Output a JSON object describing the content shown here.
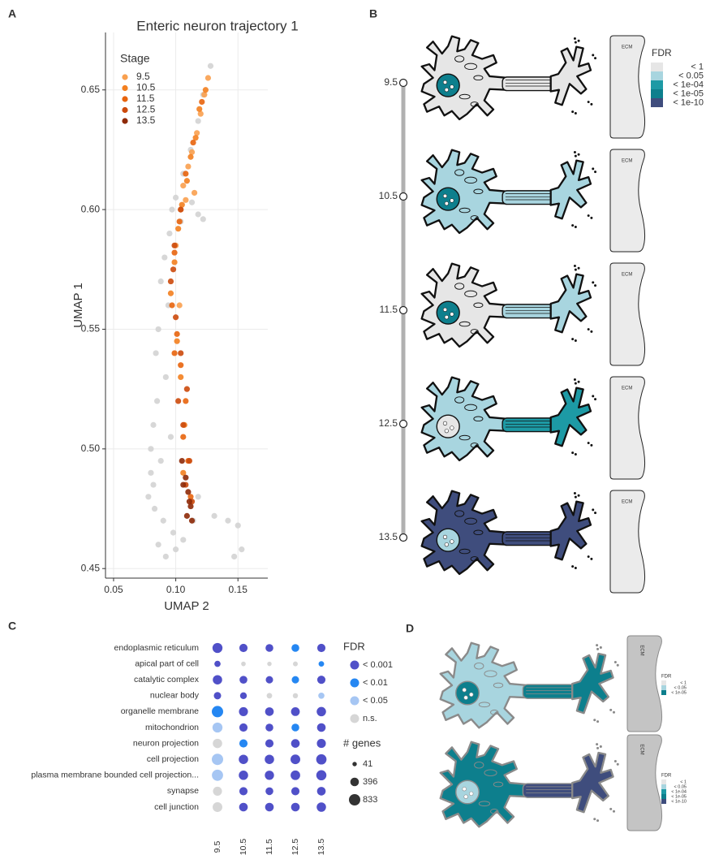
{
  "panel_labels": [
    "A",
    "B",
    "C",
    "D"
  ],
  "chart_data": [
    {
      "type": "scatter",
      "title": "Enteric neuron trajectory 1",
      "xlabel": "UMAP 2",
      "ylabel": "UMAP 1",
      "xlim": [
        0.0435,
        0.174
      ],
      "ylim": [
        0.446,
        0.674
      ],
      "xticks": [
        {
          "value": 0.05,
          "label": "0.05"
        },
        {
          "value": 0.1,
          "label": "0.10"
        },
        {
          "value": 0.15,
          "label": "0.15"
        }
      ],
      "yticks": [
        {
          "value": 0.45,
          "label": "0.45"
        },
        {
          "value": 0.5,
          "label": "0.50"
        },
        {
          "value": 0.55,
          "label": "0.55"
        },
        {
          "value": 0.6,
          "label": "0.60"
        },
        {
          "value": 0.65,
          "label": "0.65"
        }
      ],
      "grid": true,
      "legend_title": "Stage",
      "legend_position": "upper-left",
      "series": [
        {
          "color": "#d3d3d3",
          "x": [
            0.128,
            0.122,
            0.118,
            0.112,
            0.106,
            0.1,
            0.097,
            0.104,
            0.113,
            0.118,
            0.122,
            0.095,
            0.091,
            0.088,
            0.094,
            0.086,
            0.084,
            0.092,
            0.085,
            0.082,
            0.08,
            0.088,
            0.096,
            0.08,
            0.078,
            0.083,
            0.09,
            0.098,
            0.082,
            0.086,
            0.092,
            0.1,
            0.106,
            0.114,
            0.118,
            0.131,
            0.142,
            0.15,
            0.153,
            0.147
          ],
          "values": [
            0.66,
            0.648,
            0.637,
            0.625,
            0.615,
            0.605,
            0.6,
            0.595,
            0.603,
            0.598,
            0.596,
            0.59,
            0.58,
            0.57,
            0.56,
            0.55,
            0.54,
            0.53,
            0.52,
            0.51,
            0.5,
            0.495,
            0.505,
            0.49,
            0.48,
            0.475,
            0.47,
            0.465,
            0.485,
            0.46,
            0.455,
            0.458,
            0.462,
            0.47,
            0.48,
            0.472,
            0.47,
            0.468,
            0.458,
            0.455
          ]
        },
        {
          "name": "9.5",
          "color": "#f9a04f",
          "x": [
            0.126,
            0.123,
            0.12,
            0.117,
            0.113,
            0.11,
            0.106,
            0.104,
            0.108,
            0.115,
            0.1,
            0.103
          ],
          "values": [
            0.655,
            0.648,
            0.64,
            0.632,
            0.624,
            0.618,
            0.61,
            0.6,
            0.604,
            0.607,
            0.585,
            0.56
          ]
        },
        {
          "name": "10.5",
          "color": "#f3801f",
          "x": [
            0.124,
            0.119,
            0.116,
            0.112,
            0.109,
            0.105,
            0.102,
            0.099,
            0.096,
            0.101,
            0.104,
            0.107,
            0.106
          ],
          "values": [
            0.65,
            0.642,
            0.63,
            0.622,
            0.612,
            0.602,
            0.592,
            0.578,
            0.565,
            0.545,
            0.53,
            0.51,
            0.49
          ]
        },
        {
          "name": "11.5",
          "color": "#e8640d",
          "x": [
            0.121,
            0.114,
            0.108,
            0.103,
            0.099,
            0.097,
            0.101,
            0.104,
            0.108,
            0.106,
            0.11,
            0.099,
            0.112
          ],
          "values": [
            0.645,
            0.628,
            0.615,
            0.595,
            0.582,
            0.56,
            0.548,
            0.535,
            0.52,
            0.505,
            0.495,
            0.54,
            0.48
          ]
        },
        {
          "name": "12.5",
          "color": "#cc4a0c",
          "x": [
            0.104,
            0.099,
            0.096,
            0.1,
            0.104,
            0.109,
            0.106,
            0.111,
            0.108,
            0.113,
            0.102,
            0.098
          ],
          "values": [
            0.6,
            0.585,
            0.57,
            0.555,
            0.54,
            0.525,
            0.51,
            0.495,
            0.485,
            0.478,
            0.52,
            0.575
          ]
        },
        {
          "name": "13.5",
          "color": "#8e2a08",
          "x": [
            0.105,
            0.108,
            0.11,
            0.112,
            0.109,
            0.113,
            0.106,
            0.111
          ],
          "values": [
            0.495,
            0.488,
            0.482,
            0.476,
            0.472,
            0.47,
            0.485,
            0.478
          ]
        }
      ]
    },
    {
      "type": "dot",
      "categories": [
        "endoplasmic reticulum",
        "apical part of cell",
        "catalytic complex",
        "nuclear body",
        "organelle membrane",
        "mitochondrion",
        "neuron projection",
        "cell projection",
        "plasma membrane bounded cell projection...",
        "synapse",
        "cell junction"
      ],
      "x": [
        "9.5",
        "10.5",
        "11.5",
        "12.5",
        "13.5"
      ],
      "size": [
        [
          600,
          350,
          300,
          300,
          350
        ],
        [
          150,
          50,
          41,
          60,
          100
        ],
        [
          500,
          300,
          250,
          250,
          350
        ],
        [
          250,
          200,
          100,
          80,
          150
        ],
        [
          833,
          450,
          400,
          420,
          500
        ],
        [
          600,
          350,
          300,
          300,
          400
        ],
        [
          500,
          350,
          350,
          400,
          450
        ],
        [
          833,
          500,
          500,
          550,
          650
        ],
        [
          800,
          500,
          480,
          530,
          620
        ],
        [
          450,
          350,
          300,
          350,
          400
        ],
        [
          550,
          400,
          400,
          400,
          500
        ]
      ],
      "fdr": [
        [
          0,
          0,
          0,
          1,
          0
        ],
        [
          0,
          3,
          3,
          3,
          1
        ],
        [
          0,
          0,
          0,
          1,
          0
        ],
        [
          0,
          0,
          3,
          3,
          2
        ],
        [
          1,
          0,
          0,
          0,
          0
        ],
        [
          2,
          0,
          0,
          1,
          0
        ],
        [
          3,
          1,
          0,
          0,
          0
        ],
        [
          2,
          0,
          0,
          0,
          0
        ],
        [
          2,
          0,
          0,
          0,
          0
        ],
        [
          3,
          0,
          0,
          0,
          0
        ],
        [
          3,
          0,
          0,
          0,
          0
        ]
      ],
      "fdr_legend": {
        "title": "FDR",
        "labels": [
          "< 0.001",
          "< 0.01",
          "< 0.05",
          "n.s."
        ],
        "colors": [
          "#5050c8",
          "#2587f2",
          "#a6c6f3",
          "#d6d6d6"
        ]
      },
      "size_legend": {
        "title": "# genes",
        "values": [
          41,
          396,
          833
        ]
      }
    }
  ],
  "panel_b": {
    "legend_title": "FDR",
    "levels": [
      "< 1",
      "< 0.05",
      "< 1e-04",
      "< 1e-05",
      "< 1e-10"
    ],
    "colors": [
      "#e6e6e6",
      "#a8d5df",
      "#1d9aa5",
      "#0d7f8d",
      "#3f4d7d"
    ],
    "ecm_label": "ECM",
    "stages": [
      {
        "label": "9.5",
        "soma": 0,
        "nucleus": 3,
        "terminal": 0
      },
      {
        "label": "10.5",
        "soma": 1,
        "nucleus": 3,
        "terminal": 1
      },
      {
        "label": "11.5",
        "soma": 0,
        "nucleus": 3,
        "terminal": 1
      },
      {
        "label": "12.5",
        "soma": 1,
        "nucleus": 0,
        "terminal": 2
      },
      {
        "label": "13.5",
        "soma": 4,
        "nucleus": 1,
        "terminal": 4
      }
    ]
  },
  "panel_d": {
    "ecm_label": "ECM",
    "cells": [
      {
        "legend_title": "FDR",
        "levels": [
          "< 1",
          "< 0.05",
          "< 1e-05"
        ],
        "colors": [
          "#e6e6e6",
          "#a8d5df",
          "#0d7f8d"
        ],
        "soma": 1,
        "nucleus": 2,
        "terminal": 2
      },
      {
        "legend_title": "FDR",
        "levels": [
          "< 1",
          "< 0.05",
          "< 1e-04",
          "< 1e-05",
          "< 1e-10"
        ],
        "colors": [
          "#e6e6e6",
          "#a8d5df",
          "#1d9aa5",
          "#0d7f8d",
          "#3f4d7d"
        ],
        "soma": 3,
        "nucleus": 1,
        "terminal": 4
      }
    ]
  }
}
